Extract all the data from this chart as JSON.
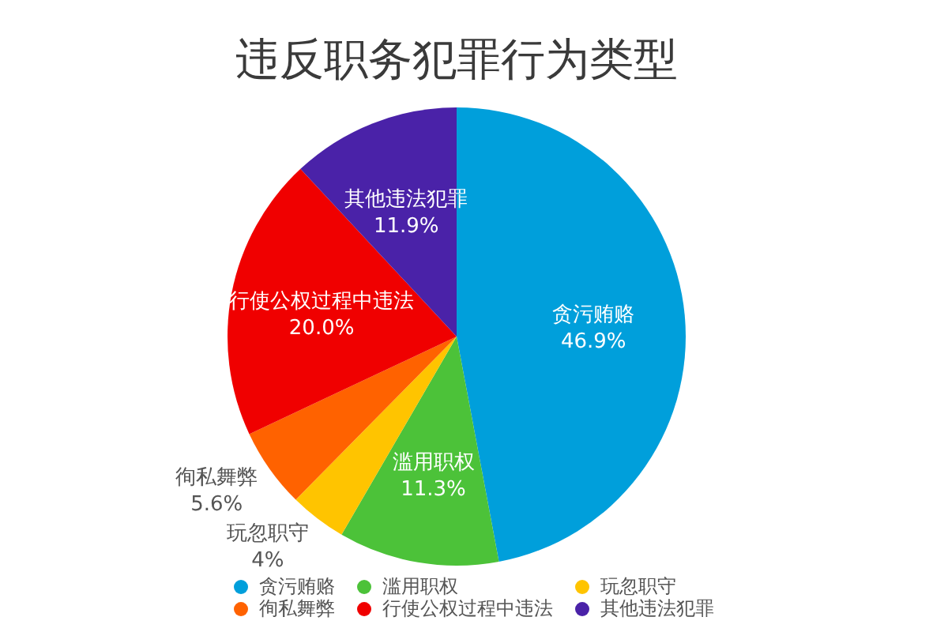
{
  "chart_data": {
    "type": "pie",
    "title": "违反职务犯罪行为类型",
    "categories": [
      "贪污贿赂",
      "滥用职权",
      "玩忽职守",
      "徇私舞弊",
      "行使公权过程中违法",
      "其他违法犯罪"
    ],
    "values": [
      46.9,
      11.3,
      4,
      5.6,
      20.0,
      11.9
    ],
    "value_labels": [
      "46.9%",
      "11.3%",
      "4%",
      "5.6%",
      "20.0%",
      "11.9%"
    ],
    "colors": [
      "#009fdb",
      "#4cc239",
      "#ffc400",
      "#ff6200",
      "#f00000",
      "#4a22a8"
    ],
    "legend": "bottom"
  }
}
